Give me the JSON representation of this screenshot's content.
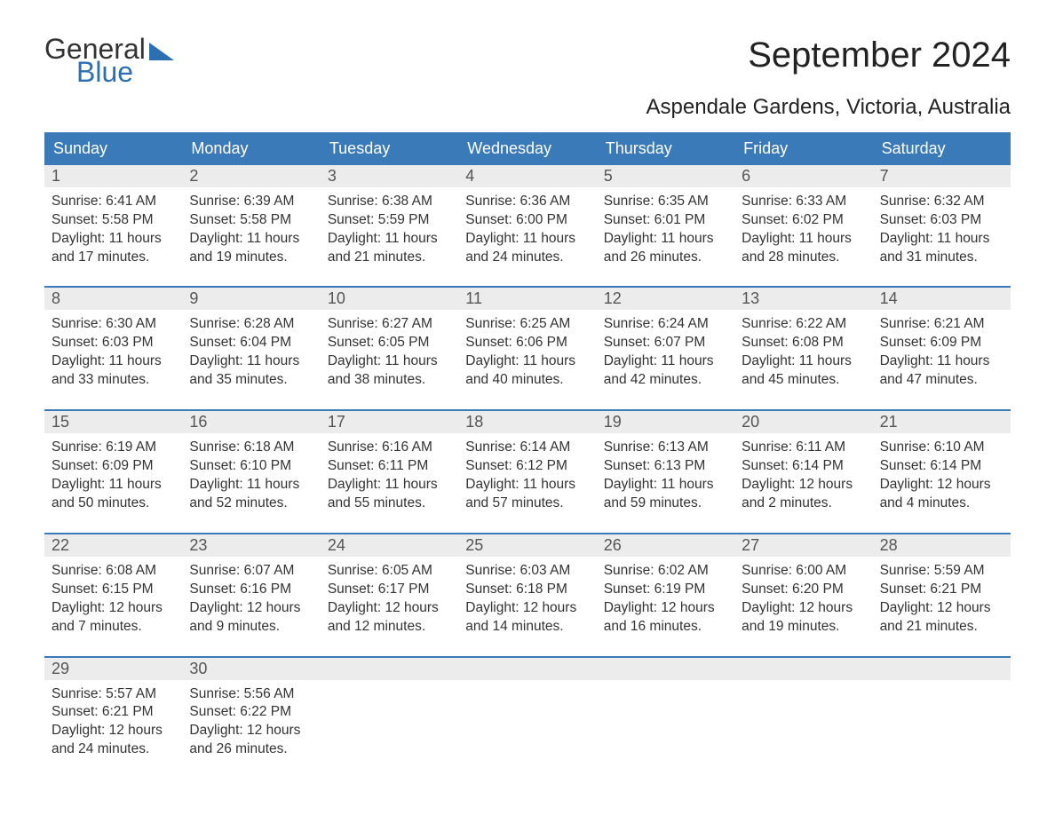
{
  "brand": {
    "general": "General",
    "blue": "Blue"
  },
  "title": "September 2024",
  "location": "Aspendale Gardens, Victoria, Australia",
  "colors": {
    "header_bg": "#3a7ab8",
    "header_text": "#ffffff",
    "band_bg": "#ececec",
    "rule": "#3a7ab8",
    "body_text": "#333333",
    "brand_blue": "#2c6fb3"
  },
  "typography": {
    "title_fontsize": 40,
    "location_fontsize": 24,
    "dow_fontsize": 18,
    "daynum_fontsize": 18,
    "body_fontsize": 15.5
  },
  "layout": {
    "columns": 7,
    "weeks": 5
  },
  "days_of_week": [
    "Sunday",
    "Monday",
    "Tuesday",
    "Wednesday",
    "Thursday",
    "Friday",
    "Saturday"
  ],
  "labels": {
    "sunrise": "Sunrise:",
    "sunset": "Sunset:",
    "daylight": "Daylight:"
  },
  "weeks": [
    [
      {
        "n": "1",
        "sunrise": "6:41 AM",
        "sunset": "5:58 PM",
        "dl1": "11 hours",
        "dl2": "and 17 minutes."
      },
      {
        "n": "2",
        "sunrise": "6:39 AM",
        "sunset": "5:58 PM",
        "dl1": "11 hours",
        "dl2": "and 19 minutes."
      },
      {
        "n": "3",
        "sunrise": "6:38 AM",
        "sunset": "5:59 PM",
        "dl1": "11 hours",
        "dl2": "and 21 minutes."
      },
      {
        "n": "4",
        "sunrise": "6:36 AM",
        "sunset": "6:00 PM",
        "dl1": "11 hours",
        "dl2": "and 24 minutes."
      },
      {
        "n": "5",
        "sunrise": "6:35 AM",
        "sunset": "6:01 PM",
        "dl1": "11 hours",
        "dl2": "and 26 minutes."
      },
      {
        "n": "6",
        "sunrise": "6:33 AM",
        "sunset": "6:02 PM",
        "dl1": "11 hours",
        "dl2": "and 28 minutes."
      },
      {
        "n": "7",
        "sunrise": "6:32 AM",
        "sunset": "6:03 PM",
        "dl1": "11 hours",
        "dl2": "and 31 minutes."
      }
    ],
    [
      {
        "n": "8",
        "sunrise": "6:30 AM",
        "sunset": "6:03 PM",
        "dl1": "11 hours",
        "dl2": "and 33 minutes."
      },
      {
        "n": "9",
        "sunrise": "6:28 AM",
        "sunset": "6:04 PM",
        "dl1": "11 hours",
        "dl2": "and 35 minutes."
      },
      {
        "n": "10",
        "sunrise": "6:27 AM",
        "sunset": "6:05 PM",
        "dl1": "11 hours",
        "dl2": "and 38 minutes."
      },
      {
        "n": "11",
        "sunrise": "6:25 AM",
        "sunset": "6:06 PM",
        "dl1": "11 hours",
        "dl2": "and 40 minutes."
      },
      {
        "n": "12",
        "sunrise": "6:24 AM",
        "sunset": "6:07 PM",
        "dl1": "11 hours",
        "dl2": "and 42 minutes."
      },
      {
        "n": "13",
        "sunrise": "6:22 AM",
        "sunset": "6:08 PM",
        "dl1": "11 hours",
        "dl2": "and 45 minutes."
      },
      {
        "n": "14",
        "sunrise": "6:21 AM",
        "sunset": "6:09 PM",
        "dl1": "11 hours",
        "dl2": "and 47 minutes."
      }
    ],
    [
      {
        "n": "15",
        "sunrise": "6:19 AM",
        "sunset": "6:09 PM",
        "dl1": "11 hours",
        "dl2": "and 50 minutes."
      },
      {
        "n": "16",
        "sunrise": "6:18 AM",
        "sunset": "6:10 PM",
        "dl1": "11 hours",
        "dl2": "and 52 minutes."
      },
      {
        "n": "17",
        "sunrise": "6:16 AM",
        "sunset": "6:11 PM",
        "dl1": "11 hours",
        "dl2": "and 55 minutes."
      },
      {
        "n": "18",
        "sunrise": "6:14 AM",
        "sunset": "6:12 PM",
        "dl1": "11 hours",
        "dl2": "and 57 minutes."
      },
      {
        "n": "19",
        "sunrise": "6:13 AM",
        "sunset": "6:13 PM",
        "dl1": "11 hours",
        "dl2": "and 59 minutes."
      },
      {
        "n": "20",
        "sunrise": "6:11 AM",
        "sunset": "6:14 PM",
        "dl1": "12 hours",
        "dl2": "and 2 minutes."
      },
      {
        "n": "21",
        "sunrise": "6:10 AM",
        "sunset": "6:14 PM",
        "dl1": "12 hours",
        "dl2": "and 4 minutes."
      }
    ],
    [
      {
        "n": "22",
        "sunrise": "6:08 AM",
        "sunset": "6:15 PM",
        "dl1": "12 hours",
        "dl2": "and 7 minutes."
      },
      {
        "n": "23",
        "sunrise": "6:07 AM",
        "sunset": "6:16 PM",
        "dl1": "12 hours",
        "dl2": "and 9 minutes."
      },
      {
        "n": "24",
        "sunrise": "6:05 AM",
        "sunset": "6:17 PM",
        "dl1": "12 hours",
        "dl2": "and 12 minutes."
      },
      {
        "n": "25",
        "sunrise": "6:03 AM",
        "sunset": "6:18 PM",
        "dl1": "12 hours",
        "dl2": "and 14 minutes."
      },
      {
        "n": "26",
        "sunrise": "6:02 AM",
        "sunset": "6:19 PM",
        "dl1": "12 hours",
        "dl2": "and 16 minutes."
      },
      {
        "n": "27",
        "sunrise": "6:00 AM",
        "sunset": "6:20 PM",
        "dl1": "12 hours",
        "dl2": "and 19 minutes."
      },
      {
        "n": "28",
        "sunrise": "5:59 AM",
        "sunset": "6:21 PM",
        "dl1": "12 hours",
        "dl2": "and 21 minutes."
      }
    ],
    [
      {
        "n": "29",
        "sunrise": "5:57 AM",
        "sunset": "6:21 PM",
        "dl1": "12 hours",
        "dl2": "and 24 minutes."
      },
      {
        "n": "30",
        "sunrise": "5:56 AM",
        "sunset": "6:22 PM",
        "dl1": "12 hours",
        "dl2": "and 26 minutes."
      },
      null,
      null,
      null,
      null,
      null
    ]
  ]
}
